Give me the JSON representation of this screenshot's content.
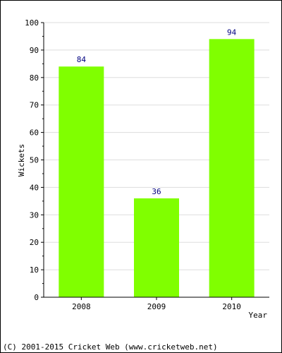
{
  "chart_data": {
    "type": "bar",
    "categories": [
      "2008",
      "2009",
      "2010"
    ],
    "values": [
      84,
      36,
      94
    ],
    "data_labels": [
      "84",
      "36",
      "94"
    ],
    "xlabel": "Year",
    "ylabel": "Wickets",
    "ylim": [
      0,
      100
    ],
    "y_tick_step": 10,
    "y_ticks": [
      "0",
      "10",
      "20",
      "30",
      "40",
      "50",
      "60",
      "70",
      "80",
      "90",
      "100"
    ],
    "grid": true,
    "legend": "none",
    "colors": {
      "bar": "#80ff00",
      "data_label": "#000080",
      "grid": "#dddddd",
      "axis": "#000000"
    }
  },
  "footer": {
    "copyright": "(C) 2001-2015 Cricket Web (www.cricketweb.net)"
  }
}
